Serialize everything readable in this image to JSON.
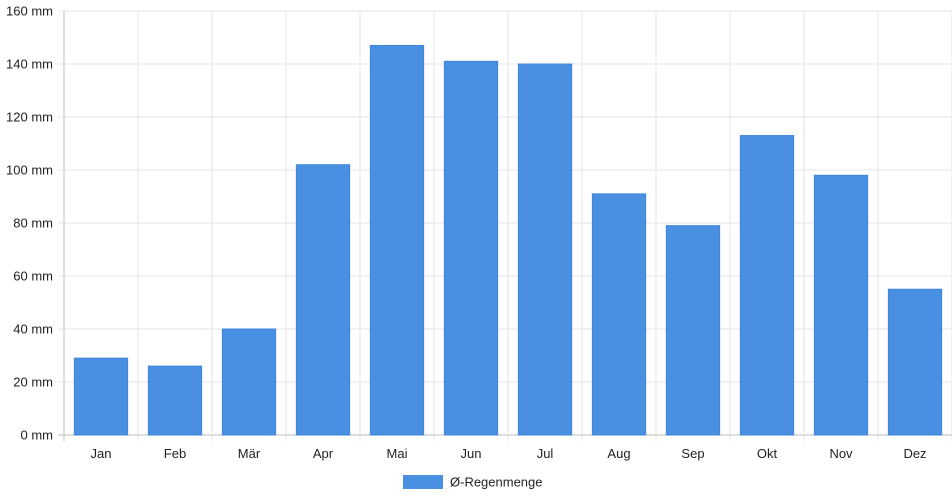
{
  "chart_data": {
    "type": "bar",
    "categories": [
      "Jan",
      "Feb",
      "Mär",
      "Apr",
      "Mai",
      "Jun",
      "Jul",
      "Aug",
      "Sep",
      "Okt",
      "Nov",
      "Dez"
    ],
    "series": [
      {
        "name": "Ø-Regenmenge",
        "color": "#4a90e2",
        "values": [
          29,
          26,
          40,
          102,
          147,
          141,
          140,
          91,
          79,
          113,
          98,
          55
        ]
      }
    ],
    "unit": "mm",
    "ylim": [
      0,
      160
    ],
    "yticks": [
      0,
      20,
      40,
      60,
      80,
      100,
      120,
      140,
      160
    ],
    "ytick_labels": [
      "0 mm",
      "20 mm",
      "40 mm",
      "60 mm",
      "80 mm",
      "100 mm",
      "120 mm",
      "140 mm",
      "160 mm"
    ],
    "grid": true,
    "legend_position": "bottom-center"
  }
}
